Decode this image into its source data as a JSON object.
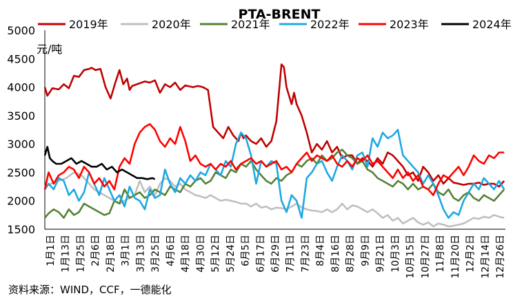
{
  "chart_data": {
    "type": "line",
    "title": "PTA-BRENT",
    "ylabel": "元/吨",
    "ylim": [
      1500,
      5000
    ],
    "yticks": [
      1500,
      2000,
      2500,
      3000,
      3500,
      4000,
      4500,
      5000
    ],
    "xticks": [
      "1月1日",
      "1月13日",
      "1月25日",
      "2月6日",
      "2月18日",
      "3月1日",
      "3月13日",
      "3月25日",
      "4月6日",
      "4月18日",
      "4月30日",
      "5月12日",
      "5月24日",
      "6月5日",
      "6月17日",
      "6月29日",
      "7月11日",
      "7月23日",
      "8月4日",
      "8月16日",
      "8月28日",
      "9月9日",
      "9月21日",
      "10月3日",
      "10月15日",
      "10月27日",
      "11月8日",
      "11月20日",
      "12月2日",
      "12月14日",
      "12月26日"
    ],
    "grid": false,
    "legend_position": "top",
    "source": "资料来源：WIND，CCF，一德能化",
    "series": [
      {
        "name": "2019年",
        "color": "#c00000",
        "x": [
          1,
          3,
          7,
          12,
          16,
          20,
          24,
          28,
          32,
          36,
          38,
          41,
          45,
          49,
          53,
          57,
          60,
          63,
          66,
          68,
          70,
          75,
          80,
          84,
          88,
          92,
          96,
          100,
          104,
          108,
          112,
          118,
          122,
          126,
          130,
          134,
          138,
          142,
          146,
          150,
          152,
          154,
          156,
          158,
          160,
          164,
          168,
          172,
          176,
          180,
          184,
          186,
          188,
          190,
          192,
          194,
          196,
          198,
          200,
          204,
          208,
          212,
          216,
          220,
          224,
          228,
          232,
          236,
          240,
          244,
          248,
          252,
          256,
          260,
          264,
          268,
          272,
          276,
          280,
          284,
          288,
          292,
          296,
          300,
          304,
          308,
          312,
          316,
          320,
          324,
          328,
          332,
          336,
          340,
          344,
          348,
          352,
          356,
          360,
          364
        ],
        "y": [
          4000,
          3850,
          3980,
          3960,
          4050,
          3980,
          4200,
          4180,
          4300,
          4320,
          4340,
          4300,
          4320,
          4000,
          3800,
          4100,
          4300,
          4050,
          4150,
          3950,
          4020,
          4060,
          4100,
          4080,
          4120,
          3900,
          4050,
          4000,
          4080,
          3950,
          4030,
          4000,
          4020,
          4000,
          3950,
          3300,
          3200,
          3100,
          3300,
          3150,
          3100,
          3050,
          3200,
          3100,
          3150,
          3050,
          3000,
          3100,
          2950,
          3050,
          3400,
          3900,
          4400,
          4350,
          4000,
          3850,
          3700,
          3900,
          3700,
          3500,
          3200,
          2850,
          3000,
          2900,
          3050,
          2850,
          2950,
          2750,
          2800,
          2800,
          2650,
          2750,
          2700,
          2600,
          2750,
          2650,
          2850,
          2800,
          2700,
          2600,
          2450,
          2500,
          2350,
          2600,
          2500,
          2350,
          2450,
          2300,
          2400,
          2320,
          2300,
          2280,
          2300,
          2300,
          2320,
          2280,
          2300,
          2300,
          2250,
          2350
        ]
      },
      {
        "name": "2020年",
        "color": "#bfbfbf",
        "x": [
          1,
          6,
          12,
          18,
          24,
          30,
          36,
          40,
          44,
          48,
          52,
          56,
          60,
          64,
          68,
          72,
          76,
          80,
          84,
          88,
          92,
          96,
          100,
          104,
          108,
          112,
          116,
          120,
          124,
          128,
          132,
          136,
          140,
          144,
          148,
          152,
          156,
          160,
          164,
          168,
          172,
          176,
          180,
          184,
          188,
          192,
          196,
          200,
          204,
          208,
          212,
          216,
          220,
          224,
          228,
          232,
          236,
          240,
          244,
          248,
          252,
          256,
          260,
          264,
          268,
          272,
          276,
          280,
          284,
          288,
          292,
          296,
          300,
          304,
          308,
          312,
          316,
          320,
          324,
          328,
          332,
          336,
          340,
          344,
          348,
          352,
          356,
          360,
          364
        ],
        "y": [
          2250,
          2300,
          2350,
          2400,
          2500,
          2450,
          2300,
          2200,
          2150,
          2100,
          2050,
          2000,
          1950,
          2000,
          2050,
          2100,
          2350,
          2150,
          2250,
          2100,
          2300,
          2400,
          2350,
          2250,
          2300,
          2200,
          2150,
          2100,
          2080,
          2050,
          2100,
          2050,
          2000,
          2020,
          2000,
          1980,
          1950,
          1950,
          1900,
          1950,
          1880,
          1900,
          1850,
          1880,
          1870,
          1850,
          1900,
          1950,
          1880,
          1850,
          1830,
          1820,
          1800,
          1850,
          1800,
          1850,
          1950,
          1850,
          1920,
          1900,
          1850,
          1800,
          1850,
          1780,
          1700,
          1750,
          1650,
          1700,
          1600,
          1650,
          1700,
          1620,
          1580,
          1620,
          1550,
          1600,
          1580,
          1550,
          1560,
          1580,
          1600,
          1650,
          1700,
          1680,
          1720,
          1700,
          1750,
          1720,
          1700
        ]
      },
      {
        "name": "2021年",
        "color": "#548235",
        "x": [
          1,
          4,
          8,
          12,
          16,
          20,
          24,
          28,
          32,
          36,
          40,
          44,
          48,
          52,
          56,
          60,
          64,
          68,
          72,
          76,
          80,
          84,
          88,
          92,
          96,
          100,
          104,
          108,
          112,
          116,
          120,
          124,
          128,
          132,
          136,
          140,
          144,
          148,
          152,
          156,
          160,
          164,
          168,
          172,
          176,
          180,
          184,
          188,
          192,
          196,
          200,
          204,
          208,
          212,
          216,
          220,
          224,
          228,
          232,
          236,
          240,
          244,
          248,
          252,
          256,
          260,
          264,
          268,
          272,
          276,
          280,
          284,
          288,
          292,
          296,
          300,
          304,
          308,
          312,
          316,
          320,
          324,
          328,
          332,
          336,
          340,
          344,
          348,
          352,
          356,
          360,
          364
        ],
        "y": [
          1700,
          1780,
          1850,
          1800,
          1700,
          1850,
          1750,
          1800,
          1950,
          1900,
          1850,
          1800,
          1750,
          1780,
          2000,
          1950,
          2200,
          2050,
          2100,
          2150,
          2050,
          2100,
          2200,
          2150,
          2100,
          2250,
          2200,
          2150,
          2300,
          2250,
          2350,
          2400,
          2300,
          2350,
          2500,
          2450,
          2400,
          2550,
          2500,
          2650,
          2600,
          2700,
          2550,
          2450,
          2350,
          2300,
          2400,
          2350,
          2450,
          2500,
          2650,
          2600,
          2700,
          2750,
          2650,
          2800,
          2700,
          2750,
          2850,
          2900,
          2800,
          2750,
          2650,
          2700,
          2550,
          2500,
          2400,
          2350,
          2300,
          2250,
          2350,
          2300,
          2200,
          2300,
          2200,
          2250,
          2200,
          2300,
          2150,
          2100,
          2200,
          2050,
          2000,
          2100,
          2150,
          2050,
          2000,
          2100,
          2050,
          2000,
          2100,
          2200
        ]
      },
      {
        "name": "2022年",
        "color": "#1ca8e2",
        "x": [
          1,
          4,
          8,
          12,
          16,
          20,
          24,
          28,
          32,
          36,
          40,
          44,
          48,
          52,
          56,
          60,
          64,
          68,
          72,
          76,
          80,
          84,
          88,
          92,
          96,
          100,
          104,
          108,
          112,
          116,
          120,
          124,
          128,
          132,
          136,
          140,
          144,
          148,
          152,
          156,
          160,
          164,
          168,
          172,
          176,
          180,
          184,
          188,
          192,
          196,
          200,
          204,
          208,
          212,
          216,
          220,
          224,
          228,
          232,
          236,
          240,
          244,
          248,
          252,
          256,
          260,
          264,
          268,
          272,
          276,
          280,
          284,
          288,
          292,
          296,
          300,
          304,
          308,
          312,
          316,
          320,
          324,
          328,
          332,
          336,
          340,
          344,
          348,
          352,
          356,
          360,
          364
        ],
        "y": [
          2200,
          2300,
          2200,
          2400,
          2350,
          2100,
          2200,
          2000,
          2150,
          2500,
          2300,
          2100,
          2400,
          2200,
          2000,
          2100,
          1900,
          2250,
          2050,
          2000,
          1850,
          2200,
          2050,
          2100,
          2550,
          2300,
          2150,
          2400,
          2300,
          2450,
          2350,
          2500,
          2450,
          2650,
          2550,
          2450,
          2700,
          2600,
          3000,
          3200,
          3100,
          2800,
          2300,
          2700,
          2600,
          2700,
          2650,
          2000,
          1800,
          2100,
          2000,
          1700,
          2400,
          2500,
          2650,
          2700,
          2500,
          2350,
          2600,
          2800,
          2700,
          2550,
          2800,
          2850,
          2600,
          3100,
          2950,
          3200,
          3100,
          3150,
          3250,
          2800,
          2700,
          2600,
          2500,
          2300,
          2450,
          2300,
          2100,
          1850,
          1700,
          1800,
          1750,
          2000,
          2150,
          2300,
          2200,
          2400,
          2300,
          2200,
          2350,
          2200
        ]
      },
      {
        "name": "2023年",
        "color": "#ff0000",
        "x": [
          1,
          4,
          8,
          12,
          16,
          20,
          24,
          28,
          32,
          36,
          40,
          44,
          48,
          52,
          56,
          60,
          64,
          68,
          72,
          76,
          80,
          84,
          88,
          92,
          96,
          100,
          104,
          108,
          112,
          116,
          120,
          124,
          128,
          132,
          136,
          140,
          144,
          148,
          152,
          156,
          160,
          164,
          168,
          172,
          176,
          180,
          184,
          188,
          192,
          196,
          200,
          204,
          208,
          212,
          216,
          220,
          224,
          228,
          232,
          236,
          240,
          244,
          248,
          252,
          256,
          260,
          264,
          268,
          272,
          276,
          280,
          284,
          288,
          292,
          296,
          300,
          304,
          308,
          312,
          316,
          320,
          324,
          328,
          332,
          336,
          340,
          344,
          348,
          352,
          356,
          360,
          364
        ],
        "y": [
          2200,
          2500,
          2300,
          2450,
          2500,
          2600,
          2550,
          2400,
          2600,
          2500,
          2300,
          2400,
          2250,
          2350,
          2200,
          2600,
          2750,
          2650,
          3000,
          3200,
          3300,
          3350,
          3250,
          3050,
          2950,
          3100,
          3000,
          3300,
          3050,
          2700,
          2800,
          2650,
          2600,
          2650,
          2550,
          2650,
          2600,
          2700,
          2550,
          2650,
          2700,
          2750,
          2650,
          2700,
          2600,
          2650,
          2700,
          2550,
          2600,
          2500,
          2650,
          2750,
          2850,
          2700,
          2800,
          2750,
          2700,
          2800,
          2650,
          2600,
          2700,
          2600,
          2750,
          2700,
          2800,
          2650,
          2700,
          2600,
          2500,
          2400,
          2550,
          2400,
          2500,
          2350,
          2450,
          2250,
          2200,
          2100,
          2300,
          2450,
          2400,
          2500,
          2600,
          2450,
          2600,
          2800,
          2700,
          2650,
          2800,
          2750,
          2850,
          2850
        ]
      },
      {
        "name": "2024年",
        "color": "#000000",
        "x": [
          1,
          3,
          5,
          7,
          10,
          14,
          18,
          22,
          26,
          30,
          34,
          38,
          42,
          46,
          50,
          54,
          58,
          62,
          66,
          70,
          74,
          78,
          82,
          86,
          88
        ],
        "y": [
          2800,
          2950,
          2750,
          2700,
          2650,
          2650,
          2700,
          2750,
          2650,
          2700,
          2650,
          2600,
          2600,
          2650,
          2550,
          2600,
          2500,
          2550,
          2500,
          2450,
          2400,
          2400,
          2380,
          2400,
          2380
        ]
      }
    ]
  }
}
